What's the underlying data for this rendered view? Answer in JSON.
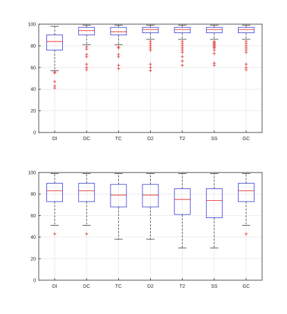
{
  "chart_data": [
    {
      "type": "box",
      "categories": [
        "DI",
        "DC",
        "TC",
        "D2",
        "T2",
        "SS",
        "GC"
      ],
      "ylim": [
        0,
        100
      ],
      "yticks": [
        0,
        20,
        40,
        60,
        80,
        100
      ],
      "grid": true,
      "colors": {
        "box": "#3333cc",
        "median": "#e03030",
        "whisker": "#333333",
        "outlier": "#e03030"
      },
      "boxes": [
        {
          "q1": 76,
          "median": 84,
          "q3": 90,
          "low": 57,
          "high": 98,
          "outliers": [
            56,
            55,
            47,
            43,
            41
          ]
        },
        {
          "q1": 90,
          "median": 94,
          "q3": 97,
          "low": 81,
          "high": 99,
          "outliers": [
            79,
            77,
            72,
            70,
            63,
            60,
            58
          ]
        },
        {
          "q1": 90,
          "median": 93,
          "q3": 97,
          "low": 81,
          "high": 99,
          "outliers": [
            79,
            78,
            72,
            70,
            62,
            59
          ]
        },
        {
          "q1": 92,
          "median": 95,
          "q3": 97,
          "low": 86,
          "high": 99,
          "outliers": [
            84,
            82,
            80,
            78,
            76,
            63,
            60,
            57
          ]
        },
        {
          "q1": 92,
          "median": 95,
          "q3": 97,
          "low": 86,
          "high": 99,
          "outliers": [
            84,
            82,
            80,
            78,
            76,
            74,
            70,
            66,
            62
          ]
        },
        {
          "q1": 92,
          "median": 95,
          "q3": 97,
          "low": 86,
          "high": 99,
          "outliers": [
            84,
            83,
            82,
            81,
            80,
            79,
            78,
            76,
            73,
            64,
            62
          ]
        },
        {
          "q1": 92,
          "median": 95,
          "q3": 97,
          "low": 86,
          "high": 99,
          "outliers": [
            84,
            82,
            80,
            78,
            76,
            74,
            63,
            60,
            58
          ]
        }
      ]
    },
    {
      "type": "box",
      "categories": [
        "DI",
        "DC",
        "TC",
        "D2",
        "T2",
        "SS",
        "GC"
      ],
      "ylim": [
        0,
        100
      ],
      "yticks": [
        0,
        20,
        40,
        60,
        80,
        100
      ],
      "grid": true,
      "colors": {
        "box": "#3333cc",
        "median": "#e03030",
        "whisker": "#333333",
        "outlier": "#e03030"
      },
      "boxes": [
        {
          "q1": 73,
          "median": 83,
          "q3": 90,
          "low": 51,
          "high": 99,
          "outliers": [
            43
          ]
        },
        {
          "q1": 73,
          "median": 83,
          "q3": 90,
          "low": 51,
          "high": 99,
          "outliers": [
            43
          ]
        },
        {
          "q1": 68,
          "median": 79,
          "q3": 89,
          "low": 38,
          "high": 99,
          "outliers": []
        },
        {
          "q1": 68,
          "median": 79,
          "q3": 89,
          "low": 38,
          "high": 99,
          "outliers": []
        },
        {
          "q1": 61,
          "median": 75,
          "q3": 85,
          "low": 30,
          "high": 99,
          "outliers": []
        },
        {
          "q1": 58,
          "median": 74,
          "q3": 85,
          "low": 30,
          "high": 99,
          "outliers": []
        },
        {
          "q1": 73,
          "median": 83,
          "q3": 90,
          "low": 51,
          "high": 99,
          "outliers": [
            43
          ]
        }
      ]
    }
  ]
}
